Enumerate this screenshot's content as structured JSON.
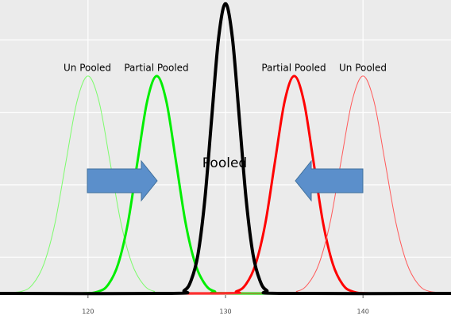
{
  "chart_data": {
    "type": "line",
    "annotations": [
      "Un Pooled",
      "Partial Pooled",
      "Pooled",
      "Partial Pooled",
      "Un Pooled"
    ],
    "xlim": [
      113.6,
      146.4
    ],
    "xticks": [
      120,
      130,
      140
    ],
    "ylim": [
      0,
      0.405
    ],
    "yticks": [
      0.05,
      0.15,
      0.25,
      0.35
    ],
    "grid": true,
    "series": [
      {
        "color": "#7cfc6c",
        "width": 1,
        "x": [
          113.6,
          113.6,
          115.2,
          116,
          116.8,
          117.6,
          118.4,
          119.2,
          120,
          120.8,
          121.6,
          122.4,
          123.2,
          124,
          124.8,
          126.4,
          146.4
        ],
        "values": [
          0,
          0,
          0.003,
          0.013,
          0.041,
          0.097,
          0.182,
          0.265,
          0.3,
          0.265,
          0.182,
          0.097,
          0.041,
          0.013,
          0.003,
          0,
          0
        ]
      },
      {
        "color": "#00ee00",
        "width": 3,
        "x": [
          113.6,
          119.4,
          120.8,
          121.5,
          122.2,
          122.9,
          123.6,
          124.3,
          125,
          125.7,
          126.4,
          127.1,
          127.8,
          128.5,
          129.2,
          130.6,
          146.4
        ],
        "values": [
          0,
          0,
          0.003,
          0.013,
          0.041,
          0.097,
          0.182,
          0.265,
          0.3,
          0.265,
          0.182,
          0.097,
          0.041,
          0.013,
          0.003,
          0,
          0
        ]
      },
      {
        "color": "#ff0000",
        "width": 3,
        "x": [
          113.6,
          129.4,
          130.8,
          131.5,
          132.2,
          132.9,
          133.6,
          134.3,
          135,
          135.7,
          136.4,
          137.1,
          137.8,
          138.5,
          139.2,
          140.6,
          146.4
        ],
        "values": [
          0,
          0,
          0.003,
          0.013,
          0.041,
          0.097,
          0.182,
          0.265,
          0.3,
          0.265,
          0.182,
          0.097,
          0.041,
          0.013,
          0.003,
          0,
          0
        ]
      },
      {
        "color": "#ff5a5a",
        "width": 1,
        "x": [
          113.6,
          133.6,
          135.2,
          136,
          136.8,
          137.6,
          138.4,
          139.2,
          140,
          140.8,
          141.6,
          142.4,
          143.2,
          144,
          144.8,
          146.4,
          146.4
        ],
        "values": [
          0,
          0,
          0.003,
          0.013,
          0.041,
          0.097,
          0.182,
          0.265,
          0.3,
          0.265,
          0.182,
          0.097,
          0.041,
          0.013,
          0.003,
          0,
          0
        ]
      },
      {
        "color": "#000000",
        "width": 4,
        "x": [
          113.6,
          126,
          127,
          127.5,
          128,
          128.5,
          129,
          129.5,
          130,
          130.5,
          131,
          131.5,
          132,
          132.5,
          133,
          134,
          146.4
        ],
        "values": [
          0,
          0,
          0.004,
          0.018,
          0.054,
          0.13,
          0.243,
          0.353,
          0.4,
          0.353,
          0.243,
          0.13,
          0.054,
          0.018,
          0.004,
          0,
          0
        ]
      }
    ]
  }
}
